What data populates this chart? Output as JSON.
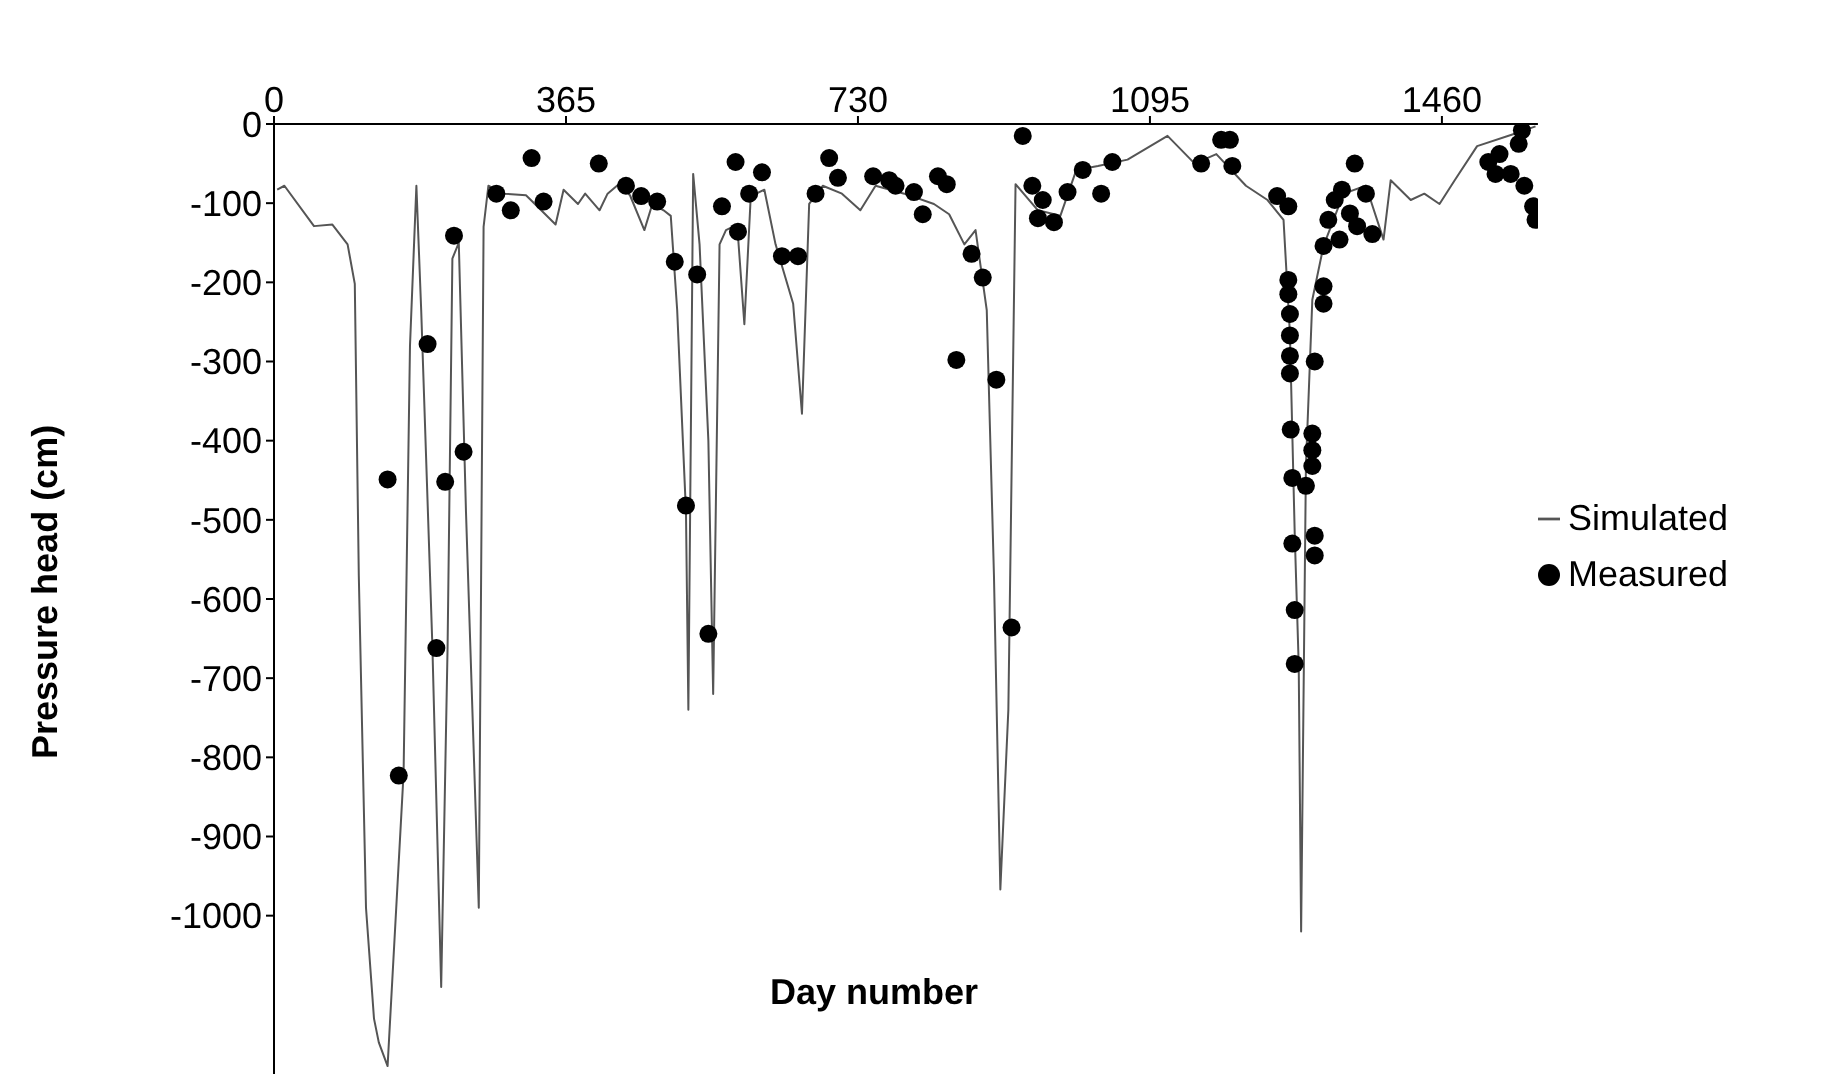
{
  "chart_data": {
    "type": "line",
    "xlabel": "Day number",
    "ylabel": "Pressure head (cm)",
    "xlim": [
      0,
      1580
    ],
    "xticks": [
      0,
      365,
      730,
      1095,
      1460
    ],
    "ylim": [
      -1200,
      0
    ],
    "yticks": [
      0,
      -100,
      -200,
      -300,
      -400,
      -500,
      -600,
      -700,
      -800,
      -900,
      -1000
    ],
    "grid": false,
    "legend": "right",
    "series": [
      {
        "name": "Simulated",
        "color": "#555555",
        "line_style": "solid",
        "x": [
          4,
          13,
          50,
          73,
          92,
          101,
          106,
          115,
          125,
          131,
          142,
          162,
          170,
          178,
          184,
          198,
          209,
          217,
          223,
          231,
          240,
          256,
          262,
          268,
          287,
          315,
          329,
          352,
          362,
          380,
          389,
          407,
          417,
          431,
          445,
          463,
          473,
          487,
          496,
          504,
          515,
          518,
          524,
          532,
          543,
          549,
          557,
          565,
          579,
          588,
          596,
          613,
          627,
          649,
          660,
          669,
          686,
          710,
          733,
          752,
          788,
          825,
          844,
          863,
          877,
          891,
          900,
          908,
          918,
          927,
          955,
          983,
          1003,
          1030,
          1067,
          1117,
          1151,
          1178,
          1215,
          1242,
          1262,
          1270,
          1276,
          1281,
          1284,
          1290,
          1298,
          1312,
          1337,
          1365,
          1387,
          1396,
          1421,
          1438,
          1457,
          1476,
          1504,
          1549,
          1577
        ],
        "values": [
          -83,
          -78,
          -129,
          -127,
          -152,
          -202,
          -570,
          -990,
          -1130,
          -1160,
          -1190,
          -820,
          -280,
          -78,
          -235,
          -660,
          -1090,
          -660,
          -170,
          -150,
          -490,
          -990,
          -130,
          -78,
          -88,
          -90,
          -104,
          -127,
          -83,
          -101,
          -88,
          -109,
          -88,
          -76,
          -90,
          -134,
          -101,
          -109,
          -116,
          -235,
          -490,
          -740,
          -63,
          -152,
          -400,
          -720,
          -152,
          -134,
          -127,
          -253,
          -91,
          -83,
          -152,
          -227,
          -366,
          -101,
          -78,
          -88,
          -109,
          -78,
          -88,
          -101,
          -114,
          -152,
          -134,
          -235,
          -570,
          -967,
          -740,
          -76,
          -109,
          -116,
          -58,
          -53,
          -45,
          -15,
          -50,
          -38,
          -78,
          -96,
          -121,
          -265,
          -518,
          -684,
          -1020,
          -432,
          -222,
          -154,
          -88,
          -78,
          -146,
          -71,
          -96,
          -88,
          -101,
          -71,
          -28,
          -13,
          -3
        ]
      },
      {
        "name": "Measured",
        "type": "scatter",
        "color": "#000000",
        "marker": "circle",
        "x": [
          142,
          156,
          192,
          203,
          214,
          225,
          237,
          278,
          296,
          322,
          337,
          406,
          440,
          459,
          479,
          501,
          515,
          529,
          543,
          560,
          577,
          580,
          594,
          610,
          635,
          655,
          677,
          694,
          705,
          749,
          769,
          777,
          800,
          811,
          830,
          841,
          853,
          872,
          886,
          903,
          922,
          936,
          948,
          961,
          955,
          975,
          992,
          1011,
          1034,
          1048,
          1159,
          1184,
          1195,
          1198,
          1254,
          1268,
          1268,
          1268,
          1270,
          1270,
          1270,
          1270,
          1271,
          1298,
          1298,
          1298,
          1273,
          1290,
          1273,
          1301,
          1301,
          1276,
          1276,
          1301,
          1312,
          1312,
          1312,
          1351,
          1326,
          1335,
          1365,
          1373,
          1354,
          1345,
          1318,
          1332,
          1560,
          1556,
          1532,
          1518,
          1546,
          1563,
          1574,
          1577,
          1527
        ],
        "values": [
          -449,
          -823,
          -278,
          -662,
          -452,
          -141,
          -414,
          -88,
          -109,
          -43,
          -98,
          -50,
          -78,
          -91,
          -98,
          -174,
          -482,
          -190,
          -644,
          -104,
          -48,
          -136,
          -88,
          -61,
          -167,
          -167,
          -88,
          -43,
          -68,
          -66,
          -71,
          -78,
          -86,
          -114,
          -66,
          -76,
          -298,
          -164,
          -194,
          -323,
          -636,
          -15,
          -78,
          -96,
          -119,
          -124,
          -86,
          -58,
          -88,
          -48,
          -50,
          -20,
          -20,
          -53,
          -91,
          -104,
          -197,
          -215,
          -240,
          -267,
          -293,
          -315,
          -386,
          -391,
          -412,
          -432,
          -447,
          -457,
          -530,
          -520,
          -545,
          -614,
          -682,
          -300,
          -205,
          -227,
          -154,
          -50,
          -96,
          -83,
          -88,
          -139,
          -129,
          -113,
          -121,
          -146,
          -8,
          -25,
          -38,
          -48,
          -63,
          -78,
          -104,
          -121,
          -63
        ]
      }
    ]
  }
}
